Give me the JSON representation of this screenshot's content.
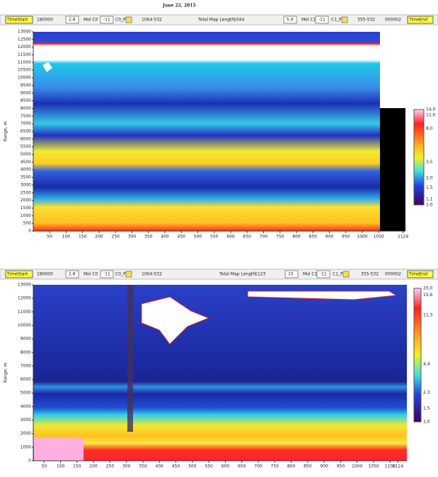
{
  "date": "June 22, 2015",
  "panels": [
    {
      "toolbar": {
        "time_start_button": "TimeStart",
        "time_start": "180000",
        "spin1": "2,8",
        "mol_c0": "Mol C0",
        "spin2": "-11",
        "c0_p": "C0_P",
        "range0": "1064-532",
        "map_length_label": "Total Map Length",
        "map_length": "1044",
        "spin3": "5,9",
        "mol_c1": "Mol C1",
        "spin4": "-11",
        "c1_p": "C1_P",
        "range1": "355-532",
        "counter": "000002",
        "time_end_button": "TimeEnd"
      },
      "y_label": "Range, m",
      "yticks": [
        0,
        500,
        1000,
        1500,
        2000,
        2500,
        3000,
        3500,
        4000,
        4500,
        5000,
        5500,
        6000,
        6500,
        7000,
        7500,
        8000,
        8500,
        9000,
        9500,
        10000,
        10500,
        11000,
        11500,
        12000,
        12500,
        13000
      ],
      "xticks": [
        50,
        100,
        150,
        200,
        250,
        300,
        350,
        400,
        450,
        500,
        550,
        600,
        650,
        700,
        750,
        800,
        850,
        900,
        950,
        1000,
        1050,
        1124
      ],
      "colorbar": [
        "14,0",
        "11,0",
        "8,0",
        "3,5",
        "2,0",
        "1,5",
        "1,1",
        "1,0"
      ]
    },
    {
      "toolbar": {
        "time_start_button": "TimeStart",
        "time_start": "180000",
        "spin1": "2,8",
        "mol_c0": "Mol C0",
        "spin2": "-11",
        "c0_p": "C0_P",
        "range0": "1064-532",
        "map_length_label": "Total Map Length",
        "map_length": "1123",
        "spin3": "10",
        "mol_c1": "Mol C1",
        "spin4": "-11",
        "c1_p": "C1_P",
        "range1": "355-532",
        "counter": "000002",
        "time_end_button": "TimeEnd"
      },
      "y_label": "Range, m",
      "yticks": [
        0,
        1000,
        2000,
        3000,
        4000,
        5000,
        6000,
        7000,
        8000,
        9000,
        10000,
        11000,
        12000,
        13000
      ],
      "xticks": [
        50,
        100,
        150,
        200,
        250,
        300,
        350,
        400,
        450,
        500,
        550,
        600,
        650,
        700,
        750,
        800,
        850,
        900,
        950,
        1000,
        1050,
        1100,
        1124
      ],
      "colorbar": [
        "20,0",
        "15,6",
        "11,3",
        "4,4",
        "2,3",
        "1,5",
        "1,0"
      ]
    }
  ]
}
